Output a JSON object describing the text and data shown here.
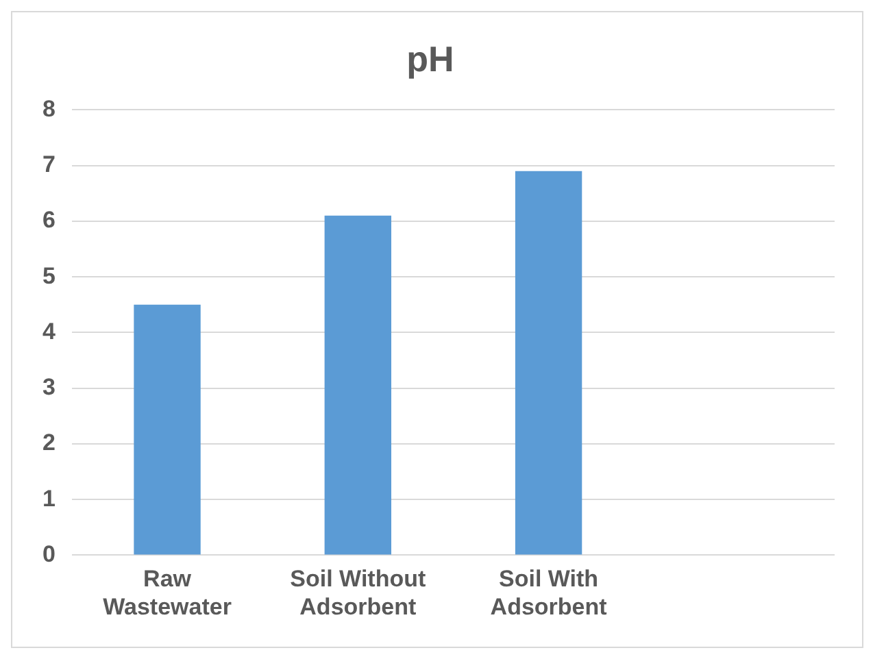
{
  "chart_data": {
    "type": "bar",
    "title": "pH",
    "categories": [
      "Raw Wastewater",
      "Soil Without Adsorbent",
      "Soil With Adsorbent",
      null
    ],
    "values": [
      4.5,
      6.1,
      6.9,
      null
    ],
    "color": "#5b9bd5",
    "ylim": [
      0,
      8
    ],
    "yticks": [
      0,
      1,
      2,
      3,
      4,
      5,
      6,
      7,
      8
    ],
    "grid": "y"
  }
}
